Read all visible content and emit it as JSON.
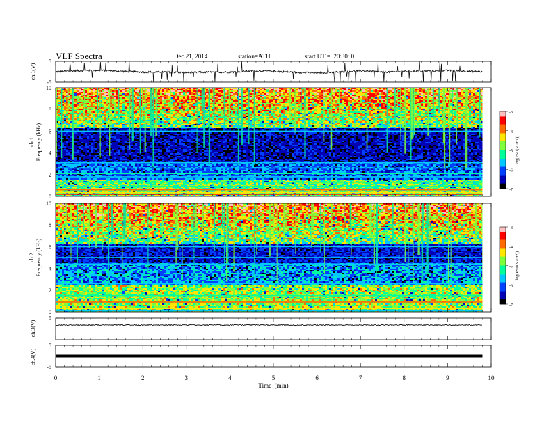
{
  "header": {
    "title": "VLF Spectra",
    "date": "Dec.21, 2014",
    "station": "station=ATH",
    "start": "start UT =  20:30: 0"
  },
  "colorbar": {
    "label": "log(PSD(V²/Hz))",
    "ticks": [
      "-3",
      "-4",
      "-5",
      "-6",
      "-7"
    ],
    "colors": [
      "#000000",
      "#0000b4",
      "#0040ff",
      "#00c8ff",
      "#00ff9a",
      "#7dff3c",
      "#ffe600",
      "#ff6a00",
      "#ff0000",
      "#ffc0c0"
    ]
  },
  "chart_data": [
    {
      "type": "line",
      "panel": "ch1",
      "ylabel": "ch.1(V)",
      "ylim": [
        -5,
        5
      ],
      "yticks": [
        "5",
        "-5"
      ],
      "x": [
        0,
        0.5,
        1,
        1.5,
        2,
        2.5,
        3,
        3.5,
        4,
        4.5,
        5,
        5.5,
        6,
        6.5,
        7,
        7.5,
        8,
        8.5,
        9,
        9.5,
        9.8
      ],
      "y": [
        0.0,
        0.5,
        0.7,
        0.2,
        -0.2,
        -0.1,
        -0.4,
        -0.2,
        -0.2,
        0.4,
        0.3,
        -0.3,
        -0.6,
        -0.1,
        0.5,
        -0.2,
        0.2,
        0.3,
        0.6,
        0.2,
        0.0
      ]
    },
    {
      "type": "heatmap",
      "panel": "ch1-spectrogram",
      "ylabel": "ch.1\nFrequency  (kHz)",
      "ylim": [
        0,
        10
      ],
      "yticks": [
        "0",
        "2",
        "4",
        "6",
        "8",
        "10"
      ]
    },
    {
      "type": "heatmap",
      "panel": "ch2-spectrogram",
      "ylabel": "ch.2\nFrequency  (kHz)",
      "ylim": [
        0,
        10
      ],
      "yticks": [
        "0",
        "2",
        "4",
        "6",
        "8",
        "10"
      ]
    },
    {
      "type": "line",
      "panel": "ch3",
      "ylabel": "ch.3(V)",
      "ylim": [
        -5,
        5
      ],
      "yticks": [
        "5"
      ],
      "x": [
        0,
        9.8
      ],
      "y": [
        0,
        0
      ]
    },
    {
      "type": "line",
      "panel": "ch4",
      "ylabel": "ch.4(V)",
      "ylim": [
        -5,
        5
      ],
      "yticks": [
        "5",
        "-5"
      ],
      "x": [
        0,
        9.8
      ],
      "y": [
        0,
        0
      ]
    }
  ],
  "xaxis": {
    "xlabel": "Time  (min)",
    "xlim": [
      0,
      10
    ],
    "ticks": [
      "0",
      "1",
      "2",
      "3",
      "4",
      "5",
      "6",
      "7",
      "8",
      "9",
      "10"
    ]
  }
}
